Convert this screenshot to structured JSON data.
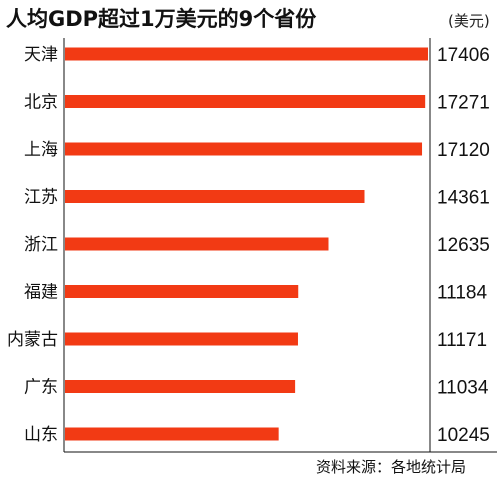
{
  "chart_data": {
    "type": "bar",
    "orientation": "horizontal",
    "title": "人均GDP超过1万美元的9个省份",
    "unit": "(美元)",
    "categories": [
      "天津",
      "北京",
      "上海",
      "江苏",
      "浙江",
      "福建",
      "内蒙古",
      "广东",
      "山东"
    ],
    "values": [
      17406,
      17271,
      17120,
      14361,
      12635,
      11184,
      11171,
      11034,
      10245
    ],
    "value_labels": [
      "17406",
      "17271",
      "17120",
      "14361",
      "12635",
      "11184",
      "11171",
      "11034",
      "10245"
    ],
    "bar_color": "#f23a14",
    "grid": false,
    "legend": "none",
    "source": "资料来源：各地统计局"
  }
}
